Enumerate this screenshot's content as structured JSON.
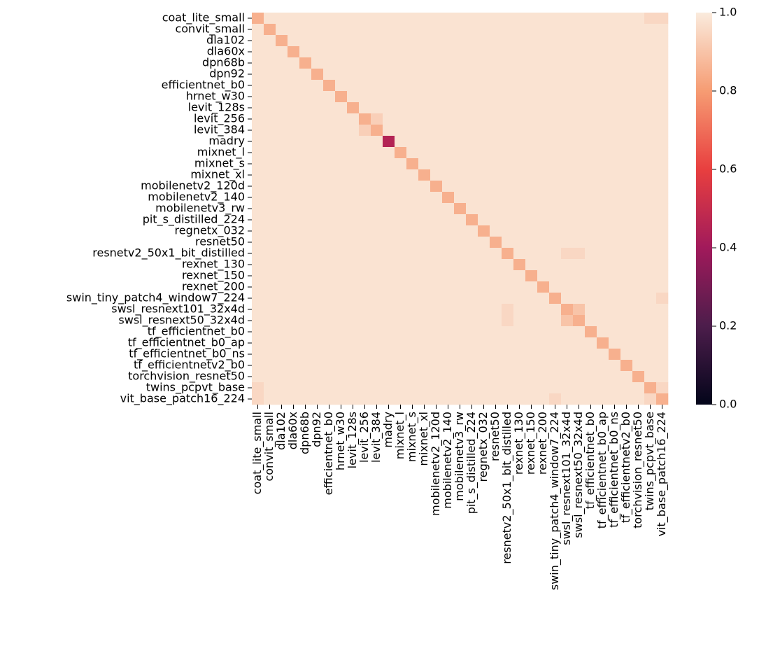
{
  "chart_data": {
    "type": "heatmap",
    "categories": [
      "coat_lite_small",
      "convit_small",
      "dla102",
      "dla60x",
      "dpn68b",
      "dpn92",
      "efficientnet_b0",
      "hrnet_w30",
      "levit_128s",
      "levit_256",
      "levit_384",
      "madry",
      "mixnet_l",
      "mixnet_s",
      "mixnet_xl",
      "mobilenetv2_120d",
      "mobilenetv2_140",
      "mobilenetv3_rw",
      "pit_s_distilled_224",
      "regnetx_032",
      "resnet50",
      "resnetv2_50x1_bit_distilled",
      "rexnet_130",
      "rexnet_150",
      "rexnet_200",
      "swin_tiny_patch4_window7_224",
      "swsl_resnext101_32x4d",
      "swsl_resnext50_32x4d",
      "tf_efficientnet_b0",
      "tf_efficientnet_b0_ap",
      "tf_efficientnet_b0_ns",
      "tf_efficientnetv2_b0",
      "torchvision_resnet50",
      "twins_pcpvt_base",
      "vit_base_patch16_224"
    ],
    "values": [
      [
        0.85,
        0.98,
        0.98,
        0.98,
        0.98,
        0.98,
        0.98,
        0.98,
        0.98,
        0.98,
        0.98,
        0.98,
        0.98,
        0.98,
        0.98,
        0.98,
        0.98,
        0.98,
        0.98,
        0.98,
        0.98,
        0.98,
        0.98,
        0.98,
        0.98,
        0.98,
        0.98,
        0.98,
        0.98,
        0.98,
        0.98,
        0.98,
        0.98,
        0.95,
        0.95
      ],
      [
        0.98,
        0.85,
        0.98,
        0.98,
        0.98,
        0.98,
        0.98,
        0.98,
        0.98,
        0.98,
        0.98,
        0.98,
        0.98,
        0.98,
        0.98,
        0.98,
        0.98,
        0.98,
        0.98,
        0.98,
        0.98,
        0.98,
        0.98,
        0.98,
        0.98,
        0.98,
        0.98,
        0.98,
        0.98,
        0.98,
        0.98,
        0.98,
        0.98,
        0.98,
        0.98
      ],
      [
        0.98,
        0.98,
        0.85,
        0.98,
        0.98,
        0.98,
        0.98,
        0.98,
        0.98,
        0.98,
        0.98,
        0.98,
        0.98,
        0.98,
        0.98,
        0.98,
        0.98,
        0.98,
        0.98,
        0.98,
        0.98,
        0.98,
        0.98,
        0.98,
        0.98,
        0.98,
        0.98,
        0.98,
        0.98,
        0.98,
        0.98,
        0.98,
        0.98,
        0.98,
        0.98
      ],
      [
        0.98,
        0.98,
        0.98,
        0.85,
        0.98,
        0.98,
        0.98,
        0.98,
        0.98,
        0.98,
        0.98,
        0.98,
        0.98,
        0.98,
        0.98,
        0.98,
        0.98,
        0.98,
        0.98,
        0.98,
        0.98,
        0.98,
        0.98,
        0.98,
        0.98,
        0.98,
        0.98,
        0.98,
        0.98,
        0.98,
        0.98,
        0.98,
        0.98,
        0.98,
        0.98
      ],
      [
        0.98,
        0.98,
        0.98,
        0.98,
        0.85,
        0.98,
        0.98,
        0.98,
        0.98,
        0.98,
        0.98,
        0.98,
        0.98,
        0.98,
        0.98,
        0.98,
        0.98,
        0.98,
        0.98,
        0.98,
        0.98,
        0.98,
        0.98,
        0.98,
        0.98,
        0.98,
        0.98,
        0.98,
        0.98,
        0.98,
        0.98,
        0.98,
        0.98,
        0.98,
        0.98
      ],
      [
        0.98,
        0.98,
        0.98,
        0.98,
        0.98,
        0.85,
        0.98,
        0.98,
        0.98,
        0.98,
        0.98,
        0.98,
        0.98,
        0.98,
        0.98,
        0.98,
        0.98,
        0.98,
        0.98,
        0.98,
        0.98,
        0.98,
        0.98,
        0.98,
        0.98,
        0.98,
        0.98,
        0.98,
        0.98,
        0.98,
        0.98,
        0.98,
        0.98,
        0.98,
        0.98
      ],
      [
        0.98,
        0.98,
        0.98,
        0.98,
        0.98,
        0.98,
        0.85,
        0.98,
        0.98,
        0.98,
        0.98,
        0.98,
        0.98,
        0.98,
        0.98,
        0.98,
        0.98,
        0.98,
        0.98,
        0.98,
        0.98,
        0.98,
        0.98,
        0.98,
        0.98,
        0.98,
        0.98,
        0.98,
        0.98,
        0.98,
        0.98,
        0.98,
        0.98,
        0.98,
        0.98
      ],
      [
        0.98,
        0.98,
        0.98,
        0.98,
        0.98,
        0.98,
        0.98,
        0.85,
        0.98,
        0.98,
        0.98,
        0.98,
        0.98,
        0.98,
        0.98,
        0.98,
        0.98,
        0.98,
        0.98,
        0.98,
        0.98,
        0.98,
        0.98,
        0.98,
        0.98,
        0.98,
        0.98,
        0.98,
        0.98,
        0.98,
        0.98,
        0.98,
        0.98,
        0.98,
        0.98
      ],
      [
        0.98,
        0.98,
        0.98,
        0.98,
        0.98,
        0.98,
        0.98,
        0.98,
        0.85,
        0.98,
        0.98,
        0.98,
        0.98,
        0.98,
        0.98,
        0.98,
        0.98,
        0.98,
        0.98,
        0.98,
        0.98,
        0.98,
        0.98,
        0.98,
        0.98,
        0.98,
        0.98,
        0.98,
        0.98,
        0.98,
        0.98,
        0.98,
        0.98,
        0.98,
        0.98
      ],
      [
        0.98,
        0.98,
        0.98,
        0.98,
        0.98,
        0.98,
        0.98,
        0.98,
        0.98,
        0.85,
        0.93,
        0.98,
        0.98,
        0.98,
        0.98,
        0.98,
        0.98,
        0.98,
        0.98,
        0.98,
        0.98,
        0.98,
        0.98,
        0.98,
        0.98,
        0.98,
        0.98,
        0.98,
        0.98,
        0.98,
        0.98,
        0.98,
        0.98,
        0.98,
        0.98
      ],
      [
        0.98,
        0.98,
        0.98,
        0.98,
        0.98,
        0.98,
        0.98,
        0.98,
        0.98,
        0.93,
        0.85,
        0.98,
        0.98,
        0.98,
        0.98,
        0.98,
        0.98,
        0.98,
        0.98,
        0.98,
        0.98,
        0.98,
        0.98,
        0.98,
        0.98,
        0.98,
        0.98,
        0.98,
        0.98,
        0.98,
        0.98,
        0.98,
        0.98,
        0.98,
        0.98
      ],
      [
        0.98,
        0.98,
        0.98,
        0.98,
        0.98,
        0.98,
        0.98,
        0.98,
        0.98,
        0.98,
        0.98,
        0.45,
        0.98,
        0.98,
        0.98,
        0.98,
        0.98,
        0.98,
        0.98,
        0.98,
        0.98,
        0.98,
        0.98,
        0.98,
        0.98,
        0.98,
        0.98,
        0.98,
        0.98,
        0.98,
        0.98,
        0.98,
        0.98,
        0.98,
        0.98
      ],
      [
        0.98,
        0.98,
        0.98,
        0.98,
        0.98,
        0.98,
        0.98,
        0.98,
        0.98,
        0.98,
        0.98,
        0.98,
        0.85,
        0.98,
        0.98,
        0.98,
        0.98,
        0.98,
        0.98,
        0.98,
        0.98,
        0.98,
        0.98,
        0.98,
        0.98,
        0.98,
        0.98,
        0.98,
        0.98,
        0.98,
        0.98,
        0.98,
        0.98,
        0.98,
        0.98
      ],
      [
        0.98,
        0.98,
        0.98,
        0.98,
        0.98,
        0.98,
        0.98,
        0.98,
        0.98,
        0.98,
        0.98,
        0.98,
        0.98,
        0.85,
        0.98,
        0.98,
        0.98,
        0.98,
        0.98,
        0.98,
        0.98,
        0.98,
        0.98,
        0.98,
        0.98,
        0.98,
        0.98,
        0.98,
        0.98,
        0.98,
        0.98,
        0.98,
        0.98,
        0.98,
        0.98
      ],
      [
        0.98,
        0.98,
        0.98,
        0.98,
        0.98,
        0.98,
        0.98,
        0.98,
        0.98,
        0.98,
        0.98,
        0.98,
        0.98,
        0.98,
        0.85,
        0.98,
        0.98,
        0.98,
        0.98,
        0.98,
        0.98,
        0.98,
        0.98,
        0.98,
        0.98,
        0.98,
        0.98,
        0.98,
        0.98,
        0.98,
        0.98,
        0.98,
        0.98,
        0.98,
        0.98
      ],
      [
        0.98,
        0.98,
        0.98,
        0.98,
        0.98,
        0.98,
        0.98,
        0.98,
        0.98,
        0.98,
        0.98,
        0.98,
        0.98,
        0.98,
        0.98,
        0.85,
        0.98,
        0.98,
        0.98,
        0.98,
        0.98,
        0.98,
        0.98,
        0.98,
        0.98,
        0.98,
        0.98,
        0.98,
        0.98,
        0.98,
        0.98,
        0.98,
        0.98,
        0.98,
        0.98
      ],
      [
        0.98,
        0.98,
        0.98,
        0.98,
        0.98,
        0.98,
        0.98,
        0.98,
        0.98,
        0.98,
        0.98,
        0.98,
        0.98,
        0.98,
        0.98,
        0.98,
        0.85,
        0.98,
        0.98,
        0.98,
        0.98,
        0.98,
        0.98,
        0.98,
        0.98,
        0.98,
        0.98,
        0.98,
        0.98,
        0.98,
        0.98,
        0.98,
        0.98,
        0.98,
        0.98
      ],
      [
        0.98,
        0.98,
        0.98,
        0.98,
        0.98,
        0.98,
        0.98,
        0.98,
        0.98,
        0.98,
        0.98,
        0.98,
        0.98,
        0.98,
        0.98,
        0.98,
        0.98,
        0.85,
        0.98,
        0.98,
        0.98,
        0.98,
        0.98,
        0.98,
        0.98,
        0.98,
        0.98,
        0.98,
        0.98,
        0.98,
        0.98,
        0.98,
        0.98,
        0.98,
        0.98
      ],
      [
        0.98,
        0.98,
        0.98,
        0.98,
        0.98,
        0.98,
        0.98,
        0.98,
        0.98,
        0.98,
        0.98,
        0.98,
        0.98,
        0.98,
        0.98,
        0.98,
        0.98,
        0.98,
        0.85,
        0.98,
        0.98,
        0.98,
        0.98,
        0.98,
        0.98,
        0.98,
        0.98,
        0.98,
        0.98,
        0.98,
        0.98,
        0.98,
        0.98,
        0.98,
        0.98
      ],
      [
        0.98,
        0.98,
        0.98,
        0.98,
        0.98,
        0.98,
        0.98,
        0.98,
        0.98,
        0.98,
        0.98,
        0.98,
        0.98,
        0.98,
        0.98,
        0.98,
        0.98,
        0.98,
        0.98,
        0.85,
        0.98,
        0.98,
        0.98,
        0.98,
        0.98,
        0.98,
        0.98,
        0.98,
        0.98,
        0.98,
        0.98,
        0.98,
        0.98,
        0.98,
        0.98
      ],
      [
        0.98,
        0.98,
        0.98,
        0.98,
        0.98,
        0.98,
        0.98,
        0.98,
        0.98,
        0.98,
        0.98,
        0.98,
        0.98,
        0.98,
        0.98,
        0.98,
        0.98,
        0.98,
        0.98,
        0.98,
        0.85,
        0.98,
        0.98,
        0.98,
        0.98,
        0.98,
        0.98,
        0.98,
        0.98,
        0.98,
        0.98,
        0.98,
        0.98,
        0.98,
        0.98
      ],
      [
        0.98,
        0.98,
        0.98,
        0.98,
        0.98,
        0.98,
        0.98,
        0.98,
        0.98,
        0.98,
        0.98,
        0.98,
        0.98,
        0.98,
        0.98,
        0.98,
        0.98,
        0.98,
        0.98,
        0.98,
        0.98,
        0.85,
        0.98,
        0.98,
        0.98,
        0.98,
        0.95,
        0.95,
        0.98,
        0.98,
        0.98,
        0.98,
        0.98,
        0.98,
        0.98
      ],
      [
        0.98,
        0.98,
        0.98,
        0.98,
        0.98,
        0.98,
        0.98,
        0.98,
        0.98,
        0.98,
        0.98,
        0.98,
        0.98,
        0.98,
        0.98,
        0.98,
        0.98,
        0.98,
        0.98,
        0.98,
        0.98,
        0.98,
        0.85,
        0.98,
        0.98,
        0.98,
        0.98,
        0.98,
        0.98,
        0.98,
        0.98,
        0.98,
        0.98,
        0.98,
        0.98
      ],
      [
        0.98,
        0.98,
        0.98,
        0.98,
        0.98,
        0.98,
        0.98,
        0.98,
        0.98,
        0.98,
        0.98,
        0.98,
        0.98,
        0.98,
        0.98,
        0.98,
        0.98,
        0.98,
        0.98,
        0.98,
        0.98,
        0.98,
        0.98,
        0.85,
        0.98,
        0.98,
        0.98,
        0.98,
        0.98,
        0.98,
        0.98,
        0.98,
        0.98,
        0.98,
        0.98
      ],
      [
        0.98,
        0.98,
        0.98,
        0.98,
        0.98,
        0.98,
        0.98,
        0.98,
        0.98,
        0.98,
        0.98,
        0.98,
        0.98,
        0.98,
        0.98,
        0.98,
        0.98,
        0.98,
        0.98,
        0.98,
        0.98,
        0.98,
        0.98,
        0.98,
        0.85,
        0.98,
        0.98,
        0.98,
        0.98,
        0.98,
        0.98,
        0.98,
        0.98,
        0.98,
        0.98
      ],
      [
        0.98,
        0.98,
        0.98,
        0.98,
        0.98,
        0.98,
        0.98,
        0.98,
        0.98,
        0.98,
        0.98,
        0.98,
        0.98,
        0.98,
        0.98,
        0.98,
        0.98,
        0.98,
        0.98,
        0.98,
        0.98,
        0.98,
        0.98,
        0.98,
        0.98,
        0.85,
        0.98,
        0.98,
        0.98,
        0.98,
        0.98,
        0.98,
        0.98,
        0.98,
        0.95
      ],
      [
        0.98,
        0.98,
        0.98,
        0.98,
        0.98,
        0.98,
        0.98,
        0.98,
        0.98,
        0.98,
        0.98,
        0.98,
        0.98,
        0.98,
        0.98,
        0.98,
        0.98,
        0.98,
        0.98,
        0.98,
        0.98,
        0.95,
        0.98,
        0.98,
        0.98,
        0.98,
        0.85,
        0.9,
        0.98,
        0.98,
        0.98,
        0.98,
        0.98,
        0.98,
        0.98
      ],
      [
        0.98,
        0.98,
        0.98,
        0.98,
        0.98,
        0.98,
        0.98,
        0.98,
        0.98,
        0.98,
        0.98,
        0.98,
        0.98,
        0.98,
        0.98,
        0.98,
        0.98,
        0.98,
        0.98,
        0.98,
        0.98,
        0.95,
        0.98,
        0.98,
        0.98,
        0.98,
        0.9,
        0.85,
        0.98,
        0.98,
        0.98,
        0.98,
        0.98,
        0.98,
        0.98
      ],
      [
        0.98,
        0.98,
        0.98,
        0.98,
        0.98,
        0.98,
        0.98,
        0.98,
        0.98,
        0.98,
        0.98,
        0.98,
        0.98,
        0.98,
        0.98,
        0.98,
        0.98,
        0.98,
        0.98,
        0.98,
        0.98,
        0.98,
        0.98,
        0.98,
        0.98,
        0.98,
        0.98,
        0.98,
        0.85,
        0.98,
        0.98,
        0.98,
        0.98,
        0.98,
        0.98
      ],
      [
        0.98,
        0.98,
        0.98,
        0.98,
        0.98,
        0.98,
        0.98,
        0.98,
        0.98,
        0.98,
        0.98,
        0.98,
        0.98,
        0.98,
        0.98,
        0.98,
        0.98,
        0.98,
        0.98,
        0.98,
        0.98,
        0.98,
        0.98,
        0.98,
        0.98,
        0.98,
        0.98,
        0.98,
        0.98,
        0.85,
        0.98,
        0.98,
        0.98,
        0.98,
        0.98
      ],
      [
        0.98,
        0.98,
        0.98,
        0.98,
        0.98,
        0.98,
        0.98,
        0.98,
        0.98,
        0.98,
        0.98,
        0.98,
        0.98,
        0.98,
        0.98,
        0.98,
        0.98,
        0.98,
        0.98,
        0.98,
        0.98,
        0.98,
        0.98,
        0.98,
        0.98,
        0.98,
        0.98,
        0.98,
        0.98,
        0.98,
        0.85,
        0.98,
        0.98,
        0.98,
        0.98
      ],
      [
        0.98,
        0.98,
        0.98,
        0.98,
        0.98,
        0.98,
        0.98,
        0.98,
        0.98,
        0.98,
        0.98,
        0.98,
        0.98,
        0.98,
        0.98,
        0.98,
        0.98,
        0.98,
        0.98,
        0.98,
        0.98,
        0.98,
        0.98,
        0.98,
        0.98,
        0.98,
        0.98,
        0.98,
        0.98,
        0.98,
        0.98,
        0.85,
        0.98,
        0.98,
        0.98
      ],
      [
        0.98,
        0.98,
        0.98,
        0.98,
        0.98,
        0.98,
        0.98,
        0.98,
        0.98,
        0.98,
        0.98,
        0.98,
        0.98,
        0.98,
        0.98,
        0.98,
        0.98,
        0.98,
        0.98,
        0.98,
        0.98,
        0.98,
        0.98,
        0.98,
        0.98,
        0.98,
        0.98,
        0.98,
        0.98,
        0.98,
        0.98,
        0.98,
        0.85,
        0.98,
        0.98
      ],
      [
        0.95,
        0.98,
        0.98,
        0.98,
        0.98,
        0.98,
        0.98,
        0.98,
        0.98,
        0.98,
        0.98,
        0.98,
        0.98,
        0.98,
        0.98,
        0.98,
        0.98,
        0.98,
        0.98,
        0.98,
        0.98,
        0.98,
        0.98,
        0.98,
        0.98,
        0.98,
        0.98,
        0.98,
        0.98,
        0.98,
        0.98,
        0.98,
        0.98,
        0.85,
        0.95
      ],
      [
        0.95,
        0.98,
        0.98,
        0.98,
        0.98,
        0.98,
        0.98,
        0.98,
        0.98,
        0.98,
        0.98,
        0.98,
        0.98,
        0.98,
        0.98,
        0.98,
        0.98,
        0.98,
        0.98,
        0.98,
        0.98,
        0.98,
        0.98,
        0.98,
        0.98,
        0.95,
        0.98,
        0.98,
        0.98,
        0.98,
        0.98,
        0.98,
        0.98,
        0.95,
        0.85
      ]
    ],
    "zlim": [
      0,
      1
    ],
    "zticks": [
      {
        "value": 0,
        "label": "0.0"
      },
      0.2,
      0.4,
      0.6,
      0.8,
      {
        "value": 1,
        "label": "1.0"
      }
    ],
    "colorscale": [
      "#03051a",
      "#4c1d4b",
      "#a11a5b",
      "#e83f3f",
      "#f69c73",
      "#faebdd"
    ]
  }
}
